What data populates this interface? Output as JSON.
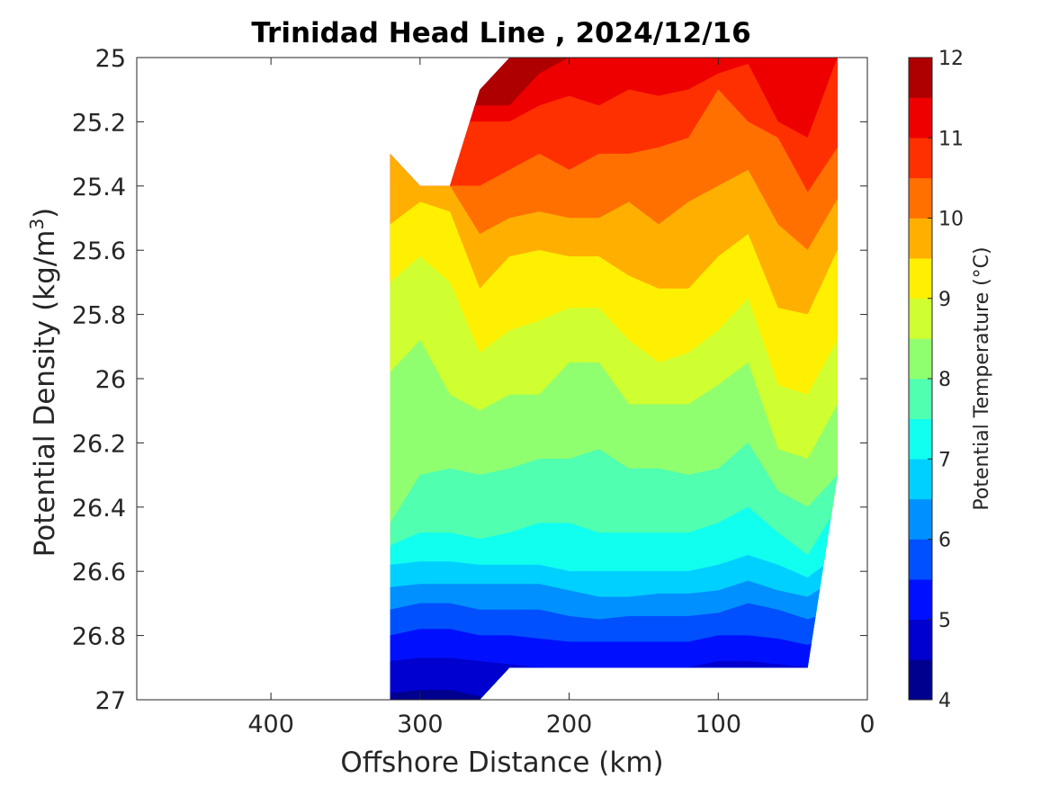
{
  "chart_data": {
    "type": "contour",
    "title": "Trinidad Head Line , 2024/12/16",
    "xlabel": "Offshore Distance (km)",
    "ylabel_main": "Potential Density (kg/m",
    "ylabel_sup": "3",
    "ylabel_close": ")",
    "x_reversed": true,
    "xlim": [
      490,
      0
    ],
    "ylim": [
      25,
      27
    ],
    "y_reversed": true,
    "xticks": [
      400,
      300,
      200,
      100,
      0
    ],
    "xtick_labels": [
      "400",
      "300",
      "200",
      "100",
      "0"
    ],
    "yticks": [
      25,
      25.2,
      25.4,
      25.6,
      25.8,
      26,
      26.2,
      26.4,
      26.6,
      26.8,
      27
    ],
    "ytick_labels": [
      "25",
      "25.2",
      "25.4",
      "25.6",
      "25.8",
      "26",
      "26.2",
      "26.4",
      "26.6",
      "26.8",
      "27"
    ],
    "colorbar": {
      "label": "Potential Temperature (°C)",
      "range": [
        4,
        12
      ],
      "ticks": [
        12,
        11,
        10,
        9,
        8,
        7,
        6,
        5,
        4
      ],
      "tick_labels": [
        "12",
        "11",
        "10",
        "9",
        "8",
        "7",
        "6",
        "5",
        "4"
      ],
      "levels": [
        4,
        4.5,
        5,
        5.5,
        6,
        6.5,
        7,
        7.5,
        8,
        8.5,
        9,
        9.5,
        10,
        10.5,
        11,
        11.5,
        12
      ],
      "colors": [
        "#00008f",
        "#0000cf",
        "#0010ff",
        "#0050ff",
        "#0090ff",
        "#00d0ff",
        "#10ffef",
        "#50ffaf",
        "#90ff6f",
        "#cfff30",
        "#ffef00",
        "#ffaf00",
        "#ff7000",
        "#ff3000",
        "#ef0000",
        "#af0000"
      ]
    },
    "x": [
      320,
      300,
      280,
      260,
      240,
      220,
      200,
      180,
      160,
      140,
      120,
      100,
      80,
      60,
      40,
      20
    ],
    "data_top": [
      25.3,
      25.4,
      25.4,
      25.1,
      25.0,
      25.0,
      25.0,
      25.0,
      25.0,
      25.0,
      25.0,
      25.0,
      25.0,
      25.0,
      25.0,
      25.0
    ],
    "data_bottom": [
      27.0,
      27.0,
      27.0,
      27.0,
      26.9,
      26.9,
      26.9,
      26.9,
      26.9,
      26.9,
      26.9,
      26.9,
      26.9,
      26.9,
      26.9,
      26.3
    ],
    "contours": [
      {
        "level": 11.5,
        "y": [
          null,
          null,
          null,
          null,
          25.15,
          25.05,
          25.0,
          25.0,
          25.0,
          25.0,
          25.0,
          25.0,
          25.0,
          25.0,
          25.0,
          25.0
        ]
      },
      {
        "level": 11,
        "y": [
          null,
          null,
          null,
          25.2,
          25.2,
          25.15,
          25.12,
          25.15,
          25.1,
          25.12,
          25.1,
          25.05,
          25.02,
          25.2,
          25.25,
          25.0
        ]
      },
      {
        "level": 10.5,
        "y": [
          null,
          null,
          null,
          25.4,
          25.35,
          25.3,
          25.35,
          25.3,
          25.3,
          25.28,
          25.25,
          25.1,
          25.2,
          25.25,
          25.42,
          25.28
        ]
      },
      {
        "level": 10,
        "y": [
          25.3,
          25.4,
          25.4,
          25.55,
          25.5,
          25.48,
          25.5,
          25.5,
          25.45,
          25.52,
          25.45,
          25.4,
          25.35,
          25.52,
          25.6,
          25.44
        ]
      },
      {
        "level": 9.5,
        "y": [
          25.52,
          25.45,
          25.48,
          25.72,
          25.62,
          25.6,
          25.62,
          25.62,
          25.68,
          25.72,
          25.72,
          25.62,
          25.55,
          25.78,
          25.8,
          25.6
        ]
      },
      {
        "level": 9,
        "y": [
          25.7,
          25.62,
          25.7,
          25.92,
          25.85,
          25.82,
          25.78,
          25.78,
          25.88,
          25.95,
          25.92,
          25.85,
          25.75,
          26.02,
          26.05,
          25.88
        ]
      },
      {
        "level": 8.5,
        "y": [
          25.98,
          25.88,
          26.05,
          26.1,
          26.05,
          26.05,
          25.95,
          25.95,
          26.08,
          26.08,
          26.08,
          26.02,
          25.95,
          26.22,
          26.25,
          26.08
        ]
      },
      {
        "level": 8,
        "y": [
          26.45,
          26.3,
          26.28,
          26.3,
          26.28,
          26.25,
          26.25,
          26.22,
          26.28,
          26.28,
          26.3,
          26.28,
          26.2,
          26.35,
          26.4,
          26.3
        ]
      },
      {
        "level": 7.5,
        "y": [
          26.52,
          26.48,
          26.48,
          26.5,
          26.48,
          26.45,
          26.45,
          26.48,
          26.48,
          26.48,
          26.48,
          26.45,
          26.4,
          26.48,
          26.55,
          26.4
        ]
      },
      {
        "level": 7,
        "y": [
          26.58,
          26.57,
          26.57,
          26.58,
          26.58,
          26.58,
          26.6,
          26.6,
          26.6,
          26.6,
          26.6,
          26.58,
          26.55,
          26.58,
          26.62,
          26.55
        ]
      },
      {
        "level": 6.5,
        "y": [
          26.65,
          26.64,
          26.64,
          26.64,
          26.64,
          26.64,
          26.66,
          26.68,
          26.68,
          26.67,
          26.67,
          26.66,
          26.63,
          26.66,
          26.68,
          26.62
        ]
      },
      {
        "level": 6,
        "y": [
          26.72,
          26.7,
          26.7,
          26.72,
          26.72,
          26.72,
          26.74,
          26.75,
          26.74,
          26.74,
          26.74,
          26.73,
          26.7,
          26.72,
          26.75,
          26.72
        ]
      },
      {
        "level": 5.5,
        "y": [
          26.8,
          26.78,
          26.78,
          26.8,
          26.8,
          26.81,
          26.82,
          26.82,
          26.82,
          26.82,
          26.82,
          26.8,
          26.8,
          26.81,
          26.83,
          26.8
        ]
      },
      {
        "level": 5,
        "y": [
          26.88,
          26.87,
          26.87,
          26.88,
          26.89,
          26.9,
          26.9,
          26.9,
          26.9,
          26.9,
          26.9,
          26.88,
          26.88,
          26.89,
          26.9,
          26.9
        ]
      },
      {
        "level": 4.5,
        "y": [
          26.98,
          26.97,
          26.97,
          26.99,
          27.0,
          27.0,
          27.0,
          27.0,
          27.0,
          27.0,
          27.0,
          27.0,
          27.0,
          27.0,
          27.0,
          27.0
        ]
      }
    ]
  }
}
